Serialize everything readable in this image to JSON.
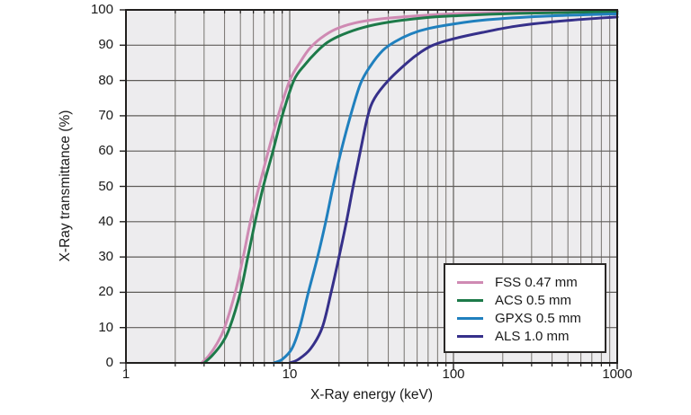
{
  "figure_colors": {
    "background": "#ffffff",
    "plot_background": "#edecee",
    "grid_minor": "#77736f",
    "grid_major": "#5f5c59",
    "plot_border": "#211f1e",
    "tick_color": "#211f1e",
    "text_color": "#1a1a1a",
    "legend_border": "#2a2827",
    "legend_background": "#ffffff"
  },
  "chart_data": {
    "type": "line",
    "title": "",
    "xlabel": "X-Ray energy (keV)",
    "ylabel": "X-Ray transmittance (%)",
    "x_scale": "log",
    "xlim": [
      1,
      1000
    ],
    "ylim": [
      0,
      100
    ],
    "grid": "on",
    "x_tick_values": [
      1,
      10,
      100,
      1000
    ],
    "x_tick_labels": [
      "1",
      "10",
      "100",
      "1000"
    ],
    "y_tick_values": [
      0,
      10,
      20,
      30,
      40,
      50,
      60,
      70,
      80,
      90,
      100
    ],
    "y_tick_labels": [
      "0",
      "10",
      "20",
      "30",
      "40",
      "50",
      "60",
      "70",
      "80",
      "90",
      "100"
    ],
    "legend_position": "lower-right",
    "series": [
      {
        "name": "FSS 0.47 mm",
        "color": "#cf8ab3",
        "points": [
          [
            2.9,
            0
          ],
          [
            3.2,
            2
          ],
          [
            3.6,
            5.5
          ],
          [
            4.0,
            10
          ],
          [
            4.65,
            20
          ],
          [
            5.2,
            30
          ],
          [
            5.75,
            40
          ],
          [
            6.5,
            50
          ],
          [
            7.4,
            60
          ],
          [
            8.5,
            70
          ],
          [
            10,
            80
          ],
          [
            11.7,
            85.5
          ],
          [
            13.2,
            89
          ],
          [
            15.5,
            92
          ],
          [
            19,
            94.5
          ],
          [
            25,
            96.3
          ],
          [
            35,
            97.4
          ],
          [
            55,
            98.2
          ],
          [
            100,
            98.9
          ],
          [
            250,
            99.4
          ],
          [
            1000,
            99.8
          ]
        ]
      },
      {
        "name": "ACS 0.5 mm",
        "color": "#1d7a49",
        "points": [
          [
            3.0,
            0
          ],
          [
            3.35,
            2
          ],
          [
            3.85,
            5.5
          ],
          [
            4.3,
            10
          ],
          [
            5.0,
            20
          ],
          [
            5.55,
            30
          ],
          [
            6.15,
            40
          ],
          [
            6.9,
            50
          ],
          [
            7.9,
            60
          ],
          [
            9.0,
            70
          ],
          [
            10.6,
            80
          ],
          [
            12.4,
            84.5
          ],
          [
            14.5,
            88
          ],
          [
            17,
            90.8
          ],
          [
            21,
            93
          ],
          [
            28,
            95
          ],
          [
            40,
            96.5
          ],
          [
            65,
            97.7
          ],
          [
            100,
            98.3
          ],
          [
            250,
            99
          ],
          [
            1000,
            99.5
          ]
        ]
      },
      {
        "name": "GPXS 0.5 mm",
        "color": "#2080be",
        "points": [
          [
            8,
            0
          ],
          [
            9,
            1
          ],
          [
            10.3,
            4
          ],
          [
            11.5,
            10
          ],
          [
            13,
            20
          ],
          [
            14.8,
            30
          ],
          [
            16.6,
            40
          ],
          [
            18.4,
            50
          ],
          [
            20.6,
            60
          ],
          [
            23.5,
            70
          ],
          [
            27,
            79
          ],
          [
            31,
            84
          ],
          [
            37,
            88.5
          ],
          [
            44,
            91
          ],
          [
            55,
            93.2
          ],
          [
            70,
            94.7
          ],
          [
            100,
            96
          ],
          [
            160,
            97.2
          ],
          [
            350,
            98.2
          ],
          [
            1000,
            98.9
          ]
        ]
      },
      {
        "name": "ALS 1.0 mm",
        "color": "#36308a",
        "points": [
          [
            10,
            0
          ],
          [
            11.3,
            1
          ],
          [
            13.4,
            4
          ],
          [
            15.8,
            10
          ],
          [
            17.9,
            20
          ],
          [
            20,
            30
          ],
          [
            22.2,
            40
          ],
          [
            24.4,
            50
          ],
          [
            27,
            60
          ],
          [
            30,
            70
          ],
          [
            33,
            75
          ],
          [
            40,
            80
          ],
          [
            52,
            85
          ],
          [
            63,
            88
          ],
          [
            75,
            90
          ],
          [
            100,
            91.8
          ],
          [
            150,
            93.6
          ],
          [
            250,
            95.5
          ],
          [
            500,
            97
          ],
          [
            1000,
            98
          ]
        ]
      }
    ]
  }
}
